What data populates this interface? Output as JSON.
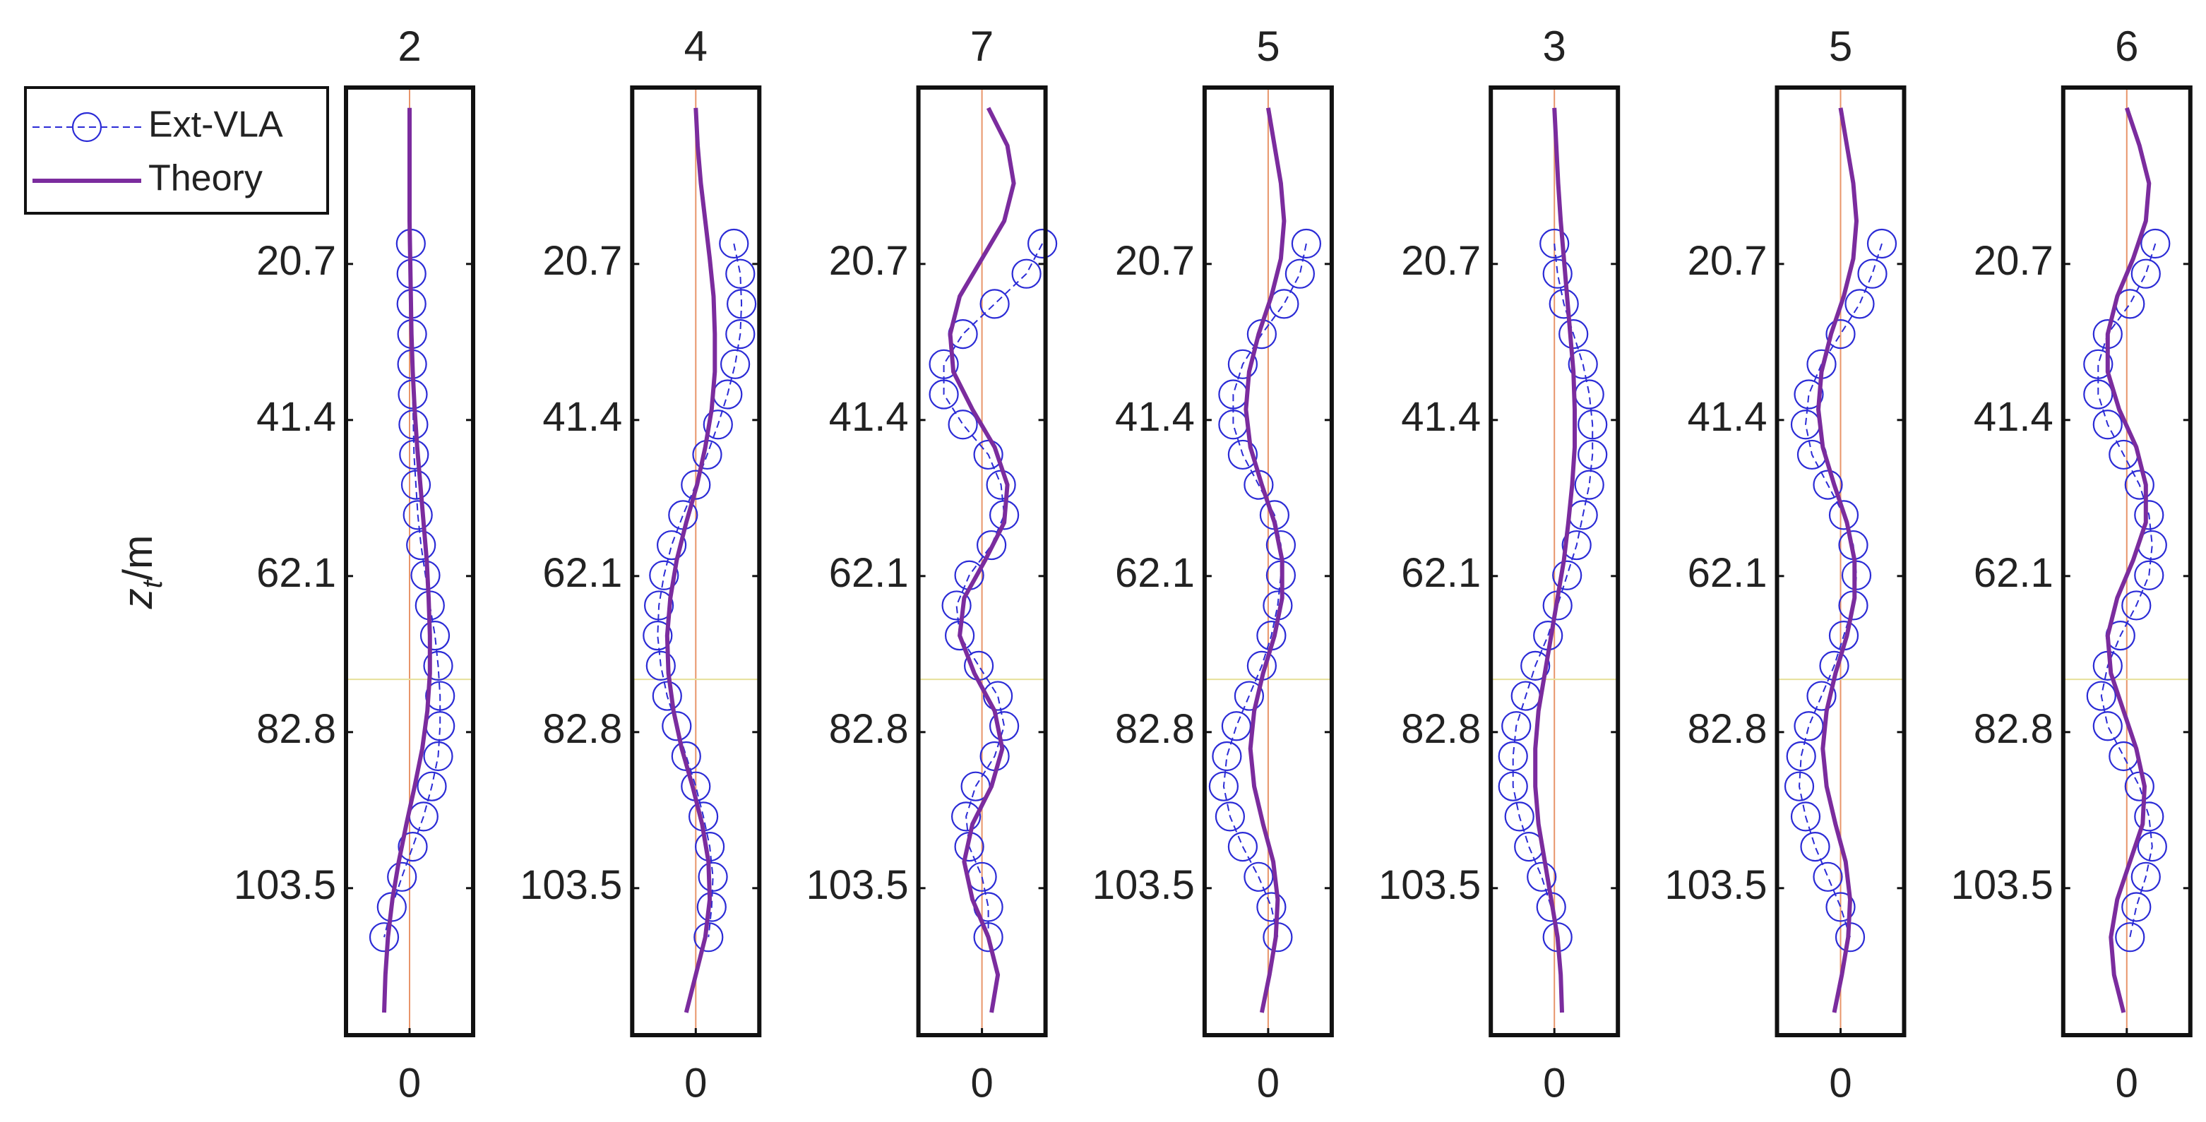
{
  "chart_data": [
    {
      "type": "line",
      "title": "2",
      "ylabel": "z",
      "ylabel_sub": "t",
      "ylabel_unit": "/m",
      "legend": "outside left",
      "xlim": [
        -1,
        1
      ],
      "xticks": [
        0
      ],
      "ylim": [
        -2.7,
        123
      ],
      "yticks": [
        20.7,
        41.4,
        62.1,
        82.8,
        103.5
      ],
      "y_reversed": true,
      "xref": 0,
      "xref_color": "#e8956a",
      "yref": 75.8,
      "yref_color": "#e6e09a",
      "series": [
        {
          "name": "Ext-VLA",
          "color": "#2b2bd6",
          "marker": "circle",
          "linestyle": "dashed",
          "values": [
            0.02,
            0.03,
            0.03,
            0.04,
            0.04,
            0.05,
            0.06,
            0.07,
            0.1,
            0.13,
            0.18,
            0.25,
            0.32,
            0.4,
            0.45,
            0.48,
            0.48,
            0.45,
            0.35,
            0.22,
            0.05,
            -0.12,
            -0.28,
            -0.4
          ],
          "y": [
            18,
            22,
            26,
            30,
            34,
            38,
            42,
            46,
            50,
            54,
            58,
            62,
            66,
            70,
            74,
            78,
            82,
            86,
            90,
            94,
            98,
            102,
            106,
            110
          ]
        },
        {
          "name": "Theory",
          "color": "#7b2c9e",
          "marker": "none",
          "linestyle": "solid",
          "values": [
            0,
            0,
            0,
            0,
            0.01,
            0.02,
            0.03,
            0.05,
            0.08,
            0.12,
            0.17,
            0.22,
            0.27,
            0.3,
            0.32,
            0.32,
            0.28,
            0.2,
            0.08,
            -0.05,
            -0.17,
            -0.27,
            -0.34,
            -0.38,
            -0.4
          ],
          "y": [
            0,
            5,
            10,
            15,
            20,
            25,
            30,
            35,
            40,
            45,
            50,
            55,
            60,
            65,
            70,
            75,
            80,
            85,
            90,
            95,
            100,
            105,
            110,
            115,
            120
          ]
        }
      ]
    },
    {
      "type": "line",
      "title": "4",
      "xlim": [
        -1,
        1
      ],
      "xticks": [
        0
      ],
      "ylim": [
        -2.7,
        123
      ],
      "yticks": [
        20.7,
        41.4,
        62.1,
        82.8,
        103.5
      ],
      "y_reversed": true,
      "xref": 0,
      "xref_color": "#e8956a",
      "yref": 75.8,
      "yref_color": "#e6e09a",
      "series": [
        {
          "color": "#2b2bd6",
          "marker": "circle",
          "linestyle": "dashed",
          "values": [
            0.6,
            0.7,
            0.72,
            0.7,
            0.62,
            0.5,
            0.35,
            0.18,
            0,
            -0.2,
            -0.38,
            -0.5,
            -0.58,
            -0.6,
            -0.55,
            -0.45,
            -0.3,
            -0.15,
            0,
            0.12,
            0.22,
            0.27,
            0.25,
            0.2
          ],
          "y": [
            18,
            22,
            26,
            30,
            34,
            38,
            42,
            46,
            50,
            54,
            58,
            62,
            66,
            70,
            74,
            78,
            82,
            86,
            90,
            94,
            98,
            102,
            106,
            110
          ]
        },
        {
          "color": "#7b2c9e",
          "marker": "none",
          "linestyle": "solid",
          "values": [
            0,
            0.03,
            0.08,
            0.15,
            0.22,
            0.28,
            0.3,
            0.3,
            0.25,
            0.15,
            0.02,
            -0.15,
            -0.3,
            -0.4,
            -0.45,
            -0.43,
            -0.35,
            -0.22,
            -0.05,
            0.1,
            0.2,
            0.22,
            0.15,
            0,
            -0.15
          ],
          "y": [
            0,
            5,
            10,
            15,
            20,
            25,
            30,
            35,
            40,
            45,
            50,
            55,
            60,
            65,
            70,
            75,
            80,
            85,
            90,
            95,
            100,
            105,
            110,
            115,
            120
          ]
        }
      ]
    },
    {
      "type": "line",
      "title": "7",
      "xlim": [
        -1,
        1
      ],
      "xticks": [
        0
      ],
      "ylim": [
        -2.7,
        123
      ],
      "yticks": [
        20.7,
        41.4,
        62.1,
        82.8,
        103.5
      ],
      "y_reversed": true,
      "xref": 0,
      "xref_color": "#e8956a",
      "yref": 75.8,
      "yref_color": "#e6e09a",
      "series": [
        {
          "color": "#2b2bd6",
          "marker": "circle",
          "linestyle": "dashed",
          "values": [
            0.95,
            0.7,
            0.2,
            -0.3,
            -0.6,
            -0.6,
            -0.3,
            0.1,
            0.3,
            0.35,
            0.15,
            -0.2,
            -0.4,
            -0.35,
            -0.05,
            0.25,
            0.35,
            0.2,
            -0.1,
            -0.25,
            -0.2,
            0,
            0.1,
            0.1
          ],
          "y": [
            18,
            22,
            26,
            30,
            34,
            38,
            42,
            46,
            50,
            54,
            58,
            62,
            66,
            70,
            74,
            78,
            82,
            86,
            90,
            94,
            98,
            102,
            106,
            110
          ]
        },
        {
          "color": "#7b2c9e",
          "marker": "none",
          "linestyle": "solid",
          "values": [
            0.1,
            0.4,
            0.5,
            0.35,
            0,
            -0.35,
            -0.5,
            -0.45,
            -0.15,
            0.2,
            0.4,
            0.35,
            0.05,
            -0.28,
            -0.35,
            -0.12,
            0.2,
            0.32,
            0.15,
            -0.15,
            -0.28,
            -0.15,
            0.1,
            0.25,
            0.15
          ],
          "y": [
            0,
            5,
            10,
            15,
            20,
            25,
            30,
            35,
            40,
            45,
            50,
            55,
            60,
            65,
            70,
            75,
            80,
            85,
            90,
            95,
            100,
            105,
            110,
            115,
            120
          ]
        }
      ]
    },
    {
      "type": "line",
      "title": "5",
      "xlim": [
        -1,
        1
      ],
      "xticks": [
        0
      ],
      "ylim": [
        -2.7,
        123
      ],
      "yticks": [
        20.7,
        41.4,
        62.1,
        82.8,
        103.5
      ],
      "y_reversed": true,
      "xref": 0,
      "xref_color": "#e8956a",
      "yref": 75.8,
      "yref_color": "#e6e09a",
      "series": [
        {
          "color": "#2b2bd6",
          "marker": "circle",
          "linestyle": "dashed",
          "values": [
            0.6,
            0.5,
            0.25,
            -0.1,
            -0.4,
            -0.55,
            -0.55,
            -0.4,
            -0.15,
            0.1,
            0.2,
            0.2,
            0.15,
            0.05,
            -0.1,
            -0.3,
            -0.5,
            -0.65,
            -0.7,
            -0.6,
            -0.4,
            -0.15,
            0.05,
            0.15
          ],
          "y": [
            18,
            22,
            26,
            30,
            34,
            38,
            42,
            46,
            50,
            54,
            58,
            62,
            66,
            70,
            74,
            78,
            82,
            86,
            90,
            94,
            98,
            102,
            106,
            110
          ]
        },
        {
          "color": "#7b2c9e",
          "marker": "none",
          "linestyle": "solid",
          "values": [
            0,
            0.1,
            0.2,
            0.25,
            0.2,
            0.05,
            -0.15,
            -0.3,
            -0.35,
            -0.28,
            -0.1,
            0.1,
            0.22,
            0.22,
            0.1,
            -0.08,
            -0.22,
            -0.28,
            -0.22,
            -0.08,
            0.08,
            0.15,
            0.12,
            0.02,
            -0.1
          ],
          "y": [
            0,
            5,
            10,
            15,
            20,
            25,
            30,
            35,
            40,
            45,
            50,
            55,
            60,
            65,
            70,
            75,
            80,
            85,
            90,
            95,
            100,
            105,
            110,
            115,
            120
          ]
        }
      ]
    },
    {
      "type": "line",
      "title": "3",
      "xlim": [
        -1,
        1
      ],
      "xticks": [
        0
      ],
      "ylim": [
        -2.7,
        123
      ],
      "yticks": [
        20.7,
        41.4,
        62.1,
        82.8,
        103.5
      ],
      "y_reversed": true,
      "xref": 0,
      "xref_color": "#e8956a",
      "yref": 75.8,
      "yref_color": "#e6e09a",
      "series": [
        {
          "color": "#2b2bd6",
          "marker": "circle",
          "linestyle": "dashed",
          "values": [
            0,
            0.05,
            0.15,
            0.3,
            0.45,
            0.55,
            0.6,
            0.6,
            0.55,
            0.45,
            0.35,
            0.2,
            0.05,
            -0.1,
            -0.3,
            -0.45,
            -0.6,
            -0.65,
            -0.65,
            -0.55,
            -0.4,
            -0.2,
            -0.05,
            0.05
          ],
          "y": [
            18,
            22,
            26,
            30,
            34,
            38,
            42,
            46,
            50,
            54,
            58,
            62,
            66,
            70,
            74,
            78,
            82,
            86,
            90,
            94,
            98,
            102,
            106,
            110
          ]
        },
        {
          "color": "#7b2c9e",
          "marker": "none",
          "linestyle": "solid",
          "values": [
            0,
            0.03,
            0.06,
            0.1,
            0.15,
            0.2,
            0.25,
            0.3,
            0.32,
            0.32,
            0.28,
            0.22,
            0.15,
            0.05,
            -0.05,
            -0.15,
            -0.25,
            -0.3,
            -0.3,
            -0.25,
            -0.15,
            -0.05,
            0.05,
            0.1,
            0.12
          ],
          "y": [
            0,
            5,
            10,
            15,
            20,
            25,
            30,
            35,
            40,
            45,
            50,
            55,
            60,
            65,
            70,
            75,
            80,
            85,
            90,
            95,
            100,
            105,
            110,
            115,
            120
          ]
        }
      ]
    },
    {
      "type": "line",
      "title": "5",
      "xlim": [
        -1,
        1
      ],
      "xticks": [
        0
      ],
      "ylim": [
        -2.7,
        123
      ],
      "yticks": [
        20.7,
        41.4,
        62.1,
        82.8,
        103.5
      ],
      "y_reversed": true,
      "xref": 0,
      "xref_color": "#e8956a",
      "yref": 75.8,
      "yref_color": "#e6e09a",
      "series": [
        {
          "color": "#2b2bd6",
          "marker": "circle",
          "linestyle": "dashed",
          "values": [
            0.65,
            0.5,
            0.3,
            0,
            -0.3,
            -0.5,
            -0.55,
            -0.45,
            -0.2,
            0.05,
            0.2,
            0.25,
            0.2,
            0.05,
            -0.1,
            -0.3,
            -0.5,
            -0.62,
            -0.65,
            -0.55,
            -0.4,
            -0.2,
            0,
            0.15
          ],
          "y": [
            18,
            22,
            26,
            30,
            34,
            38,
            42,
            46,
            50,
            54,
            58,
            62,
            66,
            70,
            74,
            78,
            82,
            86,
            90,
            94,
            98,
            102,
            106,
            110
          ]
        },
        {
          "color": "#7b2c9e",
          "marker": "none",
          "linestyle": "solid",
          "values": [
            0,
            0.1,
            0.2,
            0.25,
            0.2,
            0.05,
            -0.15,
            -0.3,
            -0.35,
            -0.28,
            -0.1,
            0.1,
            0.22,
            0.22,
            0.1,
            -0.08,
            -0.22,
            -0.28,
            -0.22,
            -0.08,
            0.08,
            0.15,
            0.12,
            0.02,
            -0.1
          ],
          "y": [
            0,
            5,
            10,
            15,
            20,
            25,
            30,
            35,
            40,
            45,
            50,
            55,
            60,
            65,
            70,
            75,
            80,
            85,
            90,
            95,
            100,
            105,
            110,
            115,
            120
          ]
        }
      ]
    },
    {
      "type": "line",
      "title": "6",
      "xlim": [
        -1,
        1
      ],
      "xticks": [
        0
      ],
      "ylim": [
        -2.7,
        123
      ],
      "yticks": [
        20.7,
        41.4,
        62.1,
        82.8,
        103.5
      ],
      "y_reversed": true,
      "xref": 0,
      "xref_color": "#e8956a",
      "yref": 75.8,
      "yref_color": "#e6e09a",
      "series": [
        {
          "color": "#2b2bd6",
          "marker": "circle",
          "linestyle": "dashed",
          "values": [
            0.45,
            0.3,
            0.05,
            -0.3,
            -0.45,
            -0.45,
            -0.3,
            -0.05,
            0.2,
            0.35,
            0.4,
            0.35,
            0.15,
            -0.1,
            -0.3,
            -0.4,
            -0.3,
            -0.05,
            0.2,
            0.35,
            0.4,
            0.3,
            0.15,
            0.05
          ],
          "y": [
            18,
            22,
            26,
            30,
            34,
            38,
            42,
            46,
            50,
            54,
            58,
            62,
            66,
            70,
            74,
            78,
            82,
            86,
            90,
            94,
            98,
            102,
            106,
            110
          ]
        },
        {
          "color": "#7b2c9e",
          "marker": "none",
          "linestyle": "solid",
          "values": [
            0,
            0.2,
            0.35,
            0.3,
            0.1,
            -0.15,
            -0.3,
            -0.3,
            -0.12,
            0.15,
            0.3,
            0.3,
            0.1,
            -0.15,
            -0.3,
            -0.25,
            -0.05,
            0.15,
            0.28,
            0.25,
            0.05,
            -0.15,
            -0.25,
            -0.2,
            -0.05
          ],
          "y": [
            0,
            5,
            10,
            15,
            20,
            25,
            30,
            35,
            40,
            45,
            50,
            55,
            60,
            65,
            70,
            75,
            80,
            85,
            90,
            95,
            100,
            105,
            110,
            115,
            120
          ]
        }
      ]
    }
  ]
}
